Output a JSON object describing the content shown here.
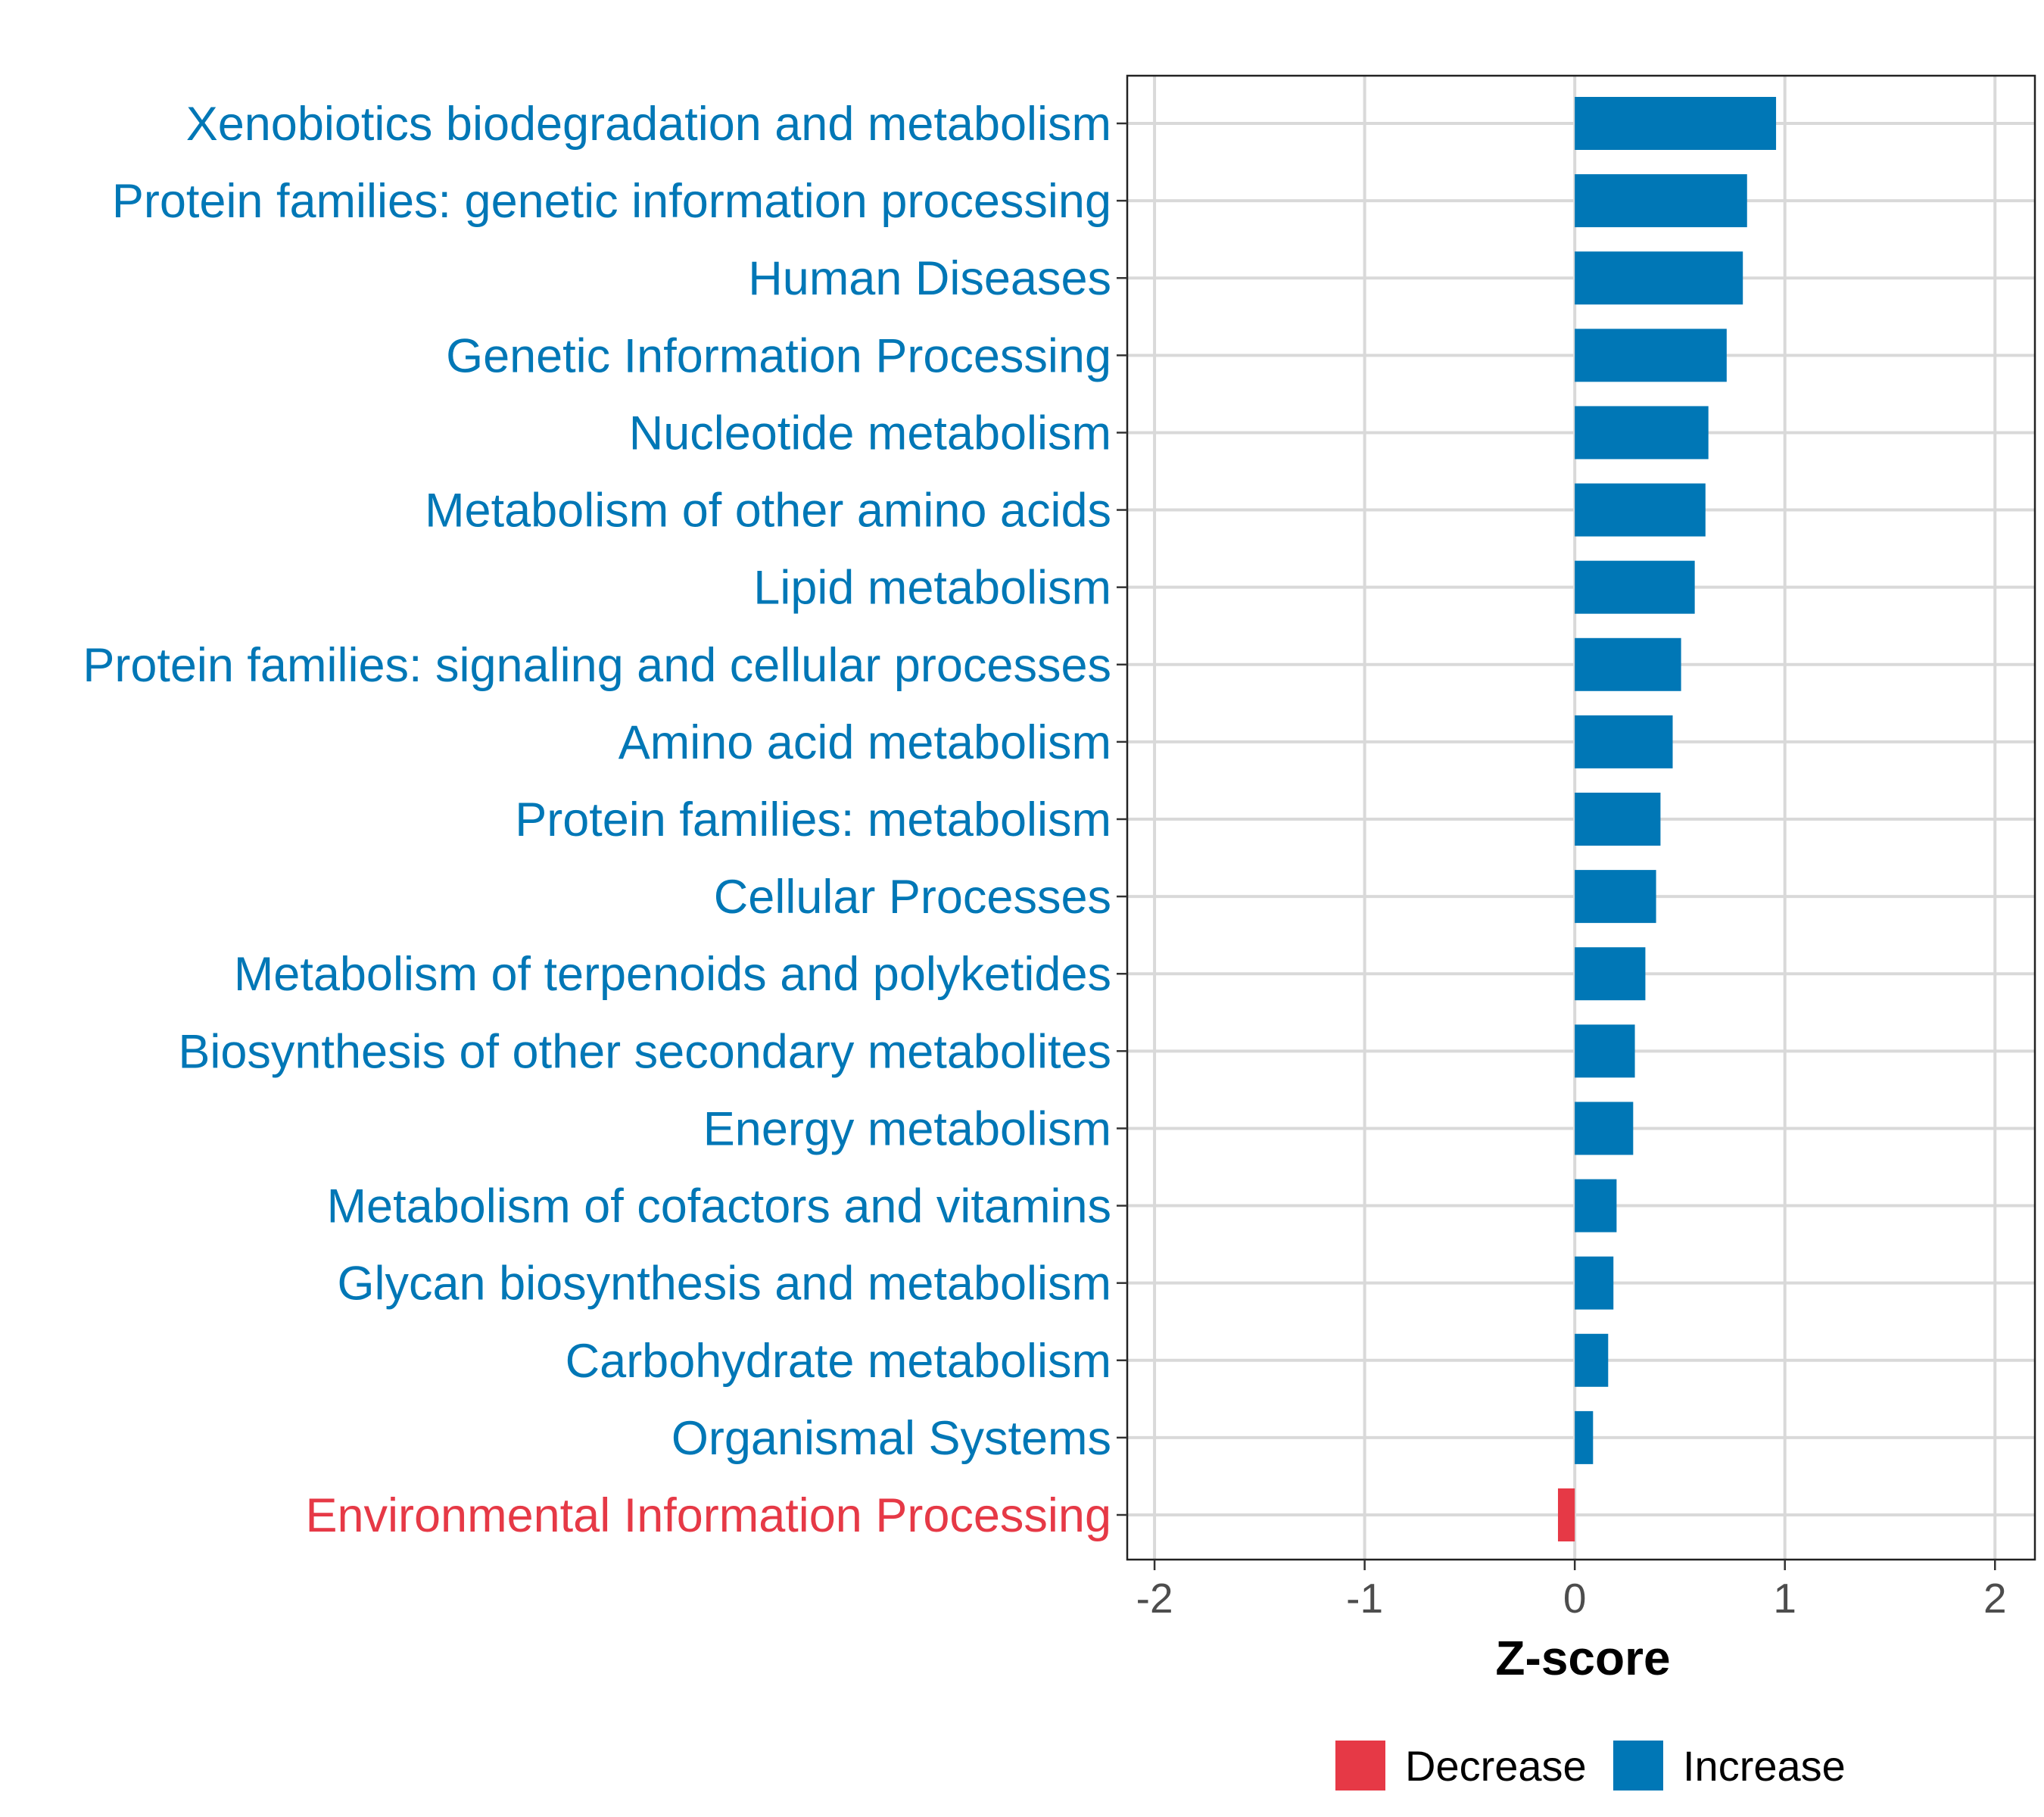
{
  "chart_data": {
    "type": "bar",
    "orientation": "horizontal",
    "title": "",
    "xlabel": "Z-score",
    "ylabel": "",
    "xlim": [
      -2.13,
      2.19
    ],
    "xticks": [
      -2,
      -1,
      0,
      1,
      2
    ],
    "xtick_labels": [
      "-2",
      "-1",
      "0",
      "1",
      "2"
    ],
    "grid": true,
    "legend_position": "bottom",
    "legend": [
      {
        "label": "Decrease",
        "color": "#E63946"
      },
      {
        "label": "Increase",
        "color": "#0077B6"
      }
    ],
    "categories": [
      "Xenobiotics biodegradation and metabolism",
      "Protein families: genetic information processing",
      "Human Diseases",
      "Genetic Information Processing",
      "Nucleotide metabolism",
      "Metabolism of other amino acids",
      "Lipid metabolism",
      "Protein families: signaling and cellular processes",
      "Amino acid metabolism",
      "Protein families: metabolism",
      "Cellular Processes",
      "Metabolism of terpenoids and polyketides",
      "Biosynthesis of other secondary metabolites",
      "Energy metabolism",
      "Metabolism of cofactors and vitamins",
      "Glycan biosynthesis and metabolism",
      "Carbohydrate metabolism",
      "Organismal Systems",
      "Environmental Information Processing"
    ],
    "values": [
      0.958,
      0.82,
      0.8,
      0.723,
      0.636,
      0.622,
      0.571,
      0.506,
      0.466,
      0.408,
      0.387,
      0.336,
      0.286,
      0.278,
      0.199,
      0.184,
      0.159,
      0.087,
      -0.08
    ],
    "groups": [
      "Increase",
      "Increase",
      "Increase",
      "Increase",
      "Increase",
      "Increase",
      "Increase",
      "Increase",
      "Increase",
      "Increase",
      "Increase",
      "Increase",
      "Increase",
      "Increase",
      "Increase",
      "Increase",
      "Increase",
      "Increase",
      "Decrease"
    ]
  }
}
